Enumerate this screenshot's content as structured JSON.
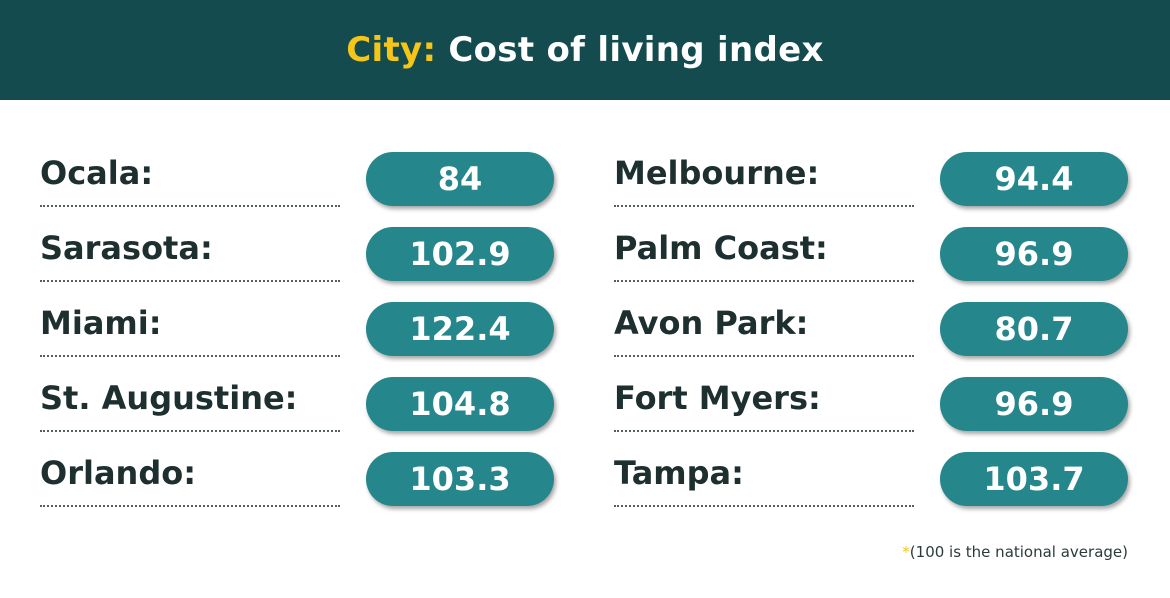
{
  "header": {
    "accent": "City:",
    "title": "Cost of living index"
  },
  "left": [
    {
      "city": "Ocala:",
      "value": "84"
    },
    {
      "city": "Sarasota:",
      "value": "102.9"
    },
    {
      "city": "Miami:",
      "value": "122.4"
    },
    {
      "city": "St. Augustine:",
      "value": "104.8"
    },
    {
      "city": "Orlando:",
      "value": "103.3"
    }
  ],
  "right": [
    {
      "city": "Melbourne:",
      "value": "94.4"
    },
    {
      "city": "Palm Coast:",
      "value": "96.9"
    },
    {
      "city": "Avon Park:",
      "value": "80.7"
    },
    {
      "city": "Fort Myers:",
      "value": "96.9"
    },
    {
      "city": "Tampa:",
      "value": "103.7"
    }
  ],
  "footnote": {
    "star": "*",
    "text": "(100 is the national average)"
  },
  "colors": {
    "header_bg": "#134b4f",
    "accent": "#f5c518",
    "pill": "#25868c",
    "text": "#1e2f2f"
  }
}
